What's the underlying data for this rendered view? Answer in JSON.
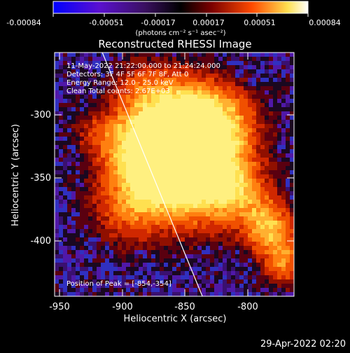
{
  "colorbar": {
    "tick_labels": [
      "-0.00084",
      "-0.00051",
      "-0.00017",
      "0.00017",
      "0.00051",
      "0.00084"
    ],
    "units": "(photons cm⁻² s⁻¹ asec⁻²)",
    "colors": [
      "#0000ff",
      "#5a00c8",
      "#3c1450",
      "#000000",
      "#7a0000",
      "#ff5000",
      "#ffff60",
      "#ffffff"
    ]
  },
  "plot": {
    "title": "Reconstructed RHESSI Image",
    "info_lines": [
      "11-May-2022 21:22:00.000 to 21:24:24.000",
      "Detectors: 3F 4F 5F 6F 7F 8F, Att 0",
      "Energy Range: 12.0 - 25.0 keV",
      "Clean    Total counts: 2.67E+03"
    ],
    "peak_label": "Position of Peak = [-854,-354]",
    "xlabel": "Heliocentric X (arcsec)",
    "ylabel": "Heliocentric Y (arcsec)",
    "x_ticks": [
      "-950",
      "-900",
      "-850",
      "-800"
    ],
    "y_ticks": [
      "-300",
      "-350",
      "-400"
    ],
    "xlim": [
      -960,
      -823
    ],
    "ylim": [
      -444,
      -282
    ]
  },
  "footer": {
    "timestamp": "29-Apr-2022 02:20"
  }
}
